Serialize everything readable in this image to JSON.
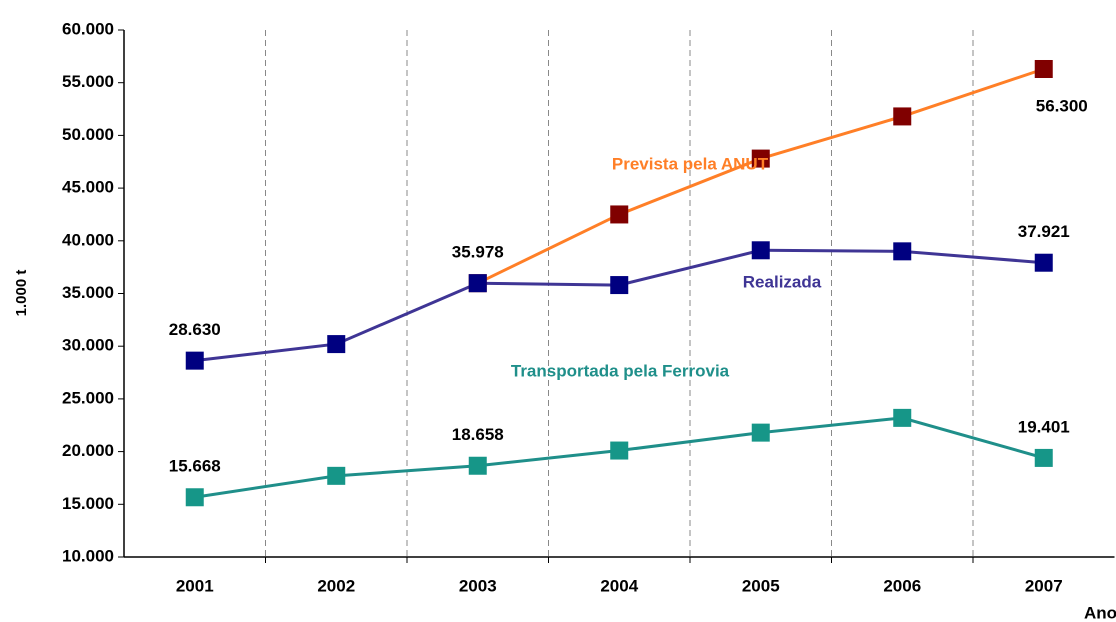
{
  "chart_data": {
    "type": "line",
    "y_label": "1.000 t",
    "x_label": "Ano",
    "categories": [
      "2001",
      "2002",
      "2003",
      "2004",
      "2005",
      "2006",
      "2007"
    ],
    "ylim": [
      10000,
      60000
    ],
    "yticks": [
      {
        "value": 10000,
        "label": "10.000"
      },
      {
        "value": 15000,
        "label": "15.000"
      },
      {
        "value": 20000,
        "label": "20.000"
      },
      {
        "value": 25000,
        "label": "25.000"
      },
      {
        "value": 30000,
        "label": "30.000"
      },
      {
        "value": 35000,
        "label": "35.000"
      },
      {
        "value": 40000,
        "label": "40.000"
      },
      {
        "value": 45000,
        "label": "45.000"
      },
      {
        "value": 50000,
        "label": "50.000"
      },
      {
        "value": 55000,
        "label": "55.000"
      },
      {
        "value": 60000,
        "label": "60.000"
      }
    ],
    "grid": "x-dashed",
    "series": [
      {
        "name": "Prevista pela ANUT",
        "color": "#ff7f27",
        "marker_color": "#800000",
        "values": [
          null,
          null,
          35978,
          42500,
          47800,
          51800,
          56300
        ],
        "value_labels": [
          null,
          null,
          null,
          null,
          null,
          null,
          "56.300"
        ]
      },
      {
        "name": "Realizada",
        "color": "#3f3595",
        "marker_color": "#000080",
        "values": [
          28630,
          30200,
          35978,
          35800,
          39100,
          39000,
          37921
        ],
        "value_labels": [
          "28.630",
          null,
          "35.978",
          null,
          null,
          null,
          "37.921"
        ]
      },
      {
        "name": "Transportada pela Ferrovia",
        "color": "#1f8f8a",
        "marker_color": "#169688",
        "values": [
          15668,
          17700,
          18658,
          20100,
          21800,
          23200,
          19401
        ],
        "value_labels": [
          "15.668",
          null,
          "18.658",
          null,
          null,
          null,
          "19.401"
        ]
      }
    ]
  }
}
